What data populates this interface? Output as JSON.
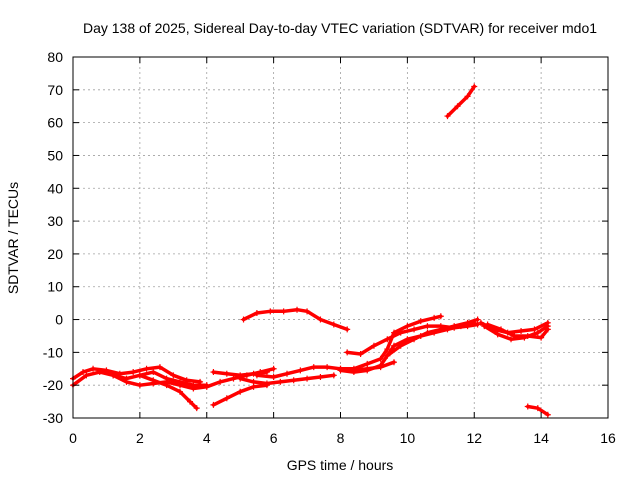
{
  "chart_data": {
    "type": "line",
    "title": "Day 138 of 2025, Sidereal Day-to-day VTEC variation (SDTVAR) for receiver mdo1",
    "xlabel": "GPS time / hours",
    "ylabel": "SDTVAR / TECUs",
    "xlim": [
      0,
      16
    ],
    "ylim": [
      -30,
      80
    ],
    "xticks": [
      0,
      2,
      4,
      6,
      8,
      10,
      12,
      14,
      16
    ],
    "yticks": [
      -30,
      -20,
      -10,
      0,
      10,
      20,
      30,
      40,
      50,
      60,
      70,
      80
    ],
    "grid": true,
    "legend": "none",
    "series_color": "#ff0000",
    "series": [
      {
        "x": [
          0.0,
          0.3,
          0.6,
          1.0,
          1.4,
          1.8,
          2.2,
          2.6,
          3.0,
          3.4,
          3.8
        ],
        "y": [
          -18,
          -16,
          -15,
          -15.5,
          -16.5,
          -16,
          -15,
          -14.5,
          -17,
          -18.5,
          -19
        ]
      },
      {
        "x": [
          0.0,
          0.4,
          0.8,
          1.2,
          1.6,
          2.0,
          2.4,
          2.8,
          3.2,
          3.6,
          4.0
        ],
        "y": [
          -20,
          -17,
          -16,
          -17,
          -18,
          -17,
          -16,
          -18,
          -19,
          -20,
          -20
        ]
      },
      {
        "x": [
          1.2,
          1.6,
          2.0,
          2.4,
          2.8,
          3.2,
          3.6,
          4.0,
          4.4,
          4.8,
          5.2,
          5.6,
          6.0
        ],
        "y": [
          -17,
          -19,
          -20,
          -19.5,
          -19,
          -20,
          -21,
          -20.5,
          -19,
          -18,
          -17,
          -16,
          -15
        ]
      },
      {
        "x": [
          2.0,
          2.4,
          2.8,
          3.2,
          3.5,
          3.7
        ],
        "y": [
          -17,
          -18.5,
          -20,
          -22,
          -25,
          -27
        ]
      },
      {
        "x": [
          4.2,
          4.6,
          5.0,
          5.4,
          5.8
        ],
        "y": [
          -16,
          -16.5,
          -17,
          -16.5,
          -16
        ]
      },
      {
        "x": [
          4.2,
          4.6,
          5.0,
          5.4,
          5.8
        ],
        "y": [
          -26,
          -24,
          -22,
          -20.5,
          -20
        ]
      },
      {
        "x": [
          5.0,
          5.4,
          5.8,
          6.2,
          6.6,
          7.0,
          7.4,
          7.8
        ],
        "y": [
          -18,
          -19,
          -19.5,
          -19,
          -18.5,
          -18,
          -17.5,
          -17
        ]
      },
      {
        "x": [
          5.5,
          6.0,
          6.4,
          6.8,
          7.2,
          7.6,
          8.0,
          8.4,
          8.8,
          9.2,
          9.6
        ],
        "y": [
          -17,
          -17.5,
          -16.5,
          -15.5,
          -14.5,
          -14.5,
          -15,
          -15.5,
          -15,
          -14.5,
          -13
        ]
      },
      {
        "x": [
          5.1,
          5.5,
          5.9,
          6.3,
          6.7,
          7.0,
          7.4,
          7.8,
          8.2
        ],
        "y": [
          0,
          2,
          2.5,
          2.5,
          3,
          2.5,
          0,
          -1.5,
          -3
        ]
      },
      {
        "x": [
          8.2,
          8.6,
          9.0,
          9.4,
          9.8,
          10.2,
          10.6,
          11.0,
          11.4,
          11.8,
          12.1
        ],
        "y": [
          -10,
          -10.5,
          -8,
          -6,
          -4,
          -3,
          -2,
          -2,
          -2.5,
          -2,
          -1.5
        ]
      },
      {
        "x": [
          8.0,
          8.4,
          8.8,
          9.2,
          9.4,
          9.6,
          10.0,
          10.4,
          10.8,
          11.0
        ],
        "y": [
          -15,
          -15,
          -13.5,
          -12,
          -9,
          -4,
          -2,
          -0.5,
          0.5,
          1
        ]
      },
      {
        "x": [
          8.0,
          8.4,
          8.8,
          9.2,
          9.4,
          9.6,
          10.0,
          10.4,
          10.8,
          11.2,
          11.6,
          12.0
        ],
        "y": [
          -15.5,
          -16,
          -15.5,
          -14,
          -11,
          -8,
          -6,
          -5,
          -4,
          -3,
          -2,
          -1
        ]
      },
      {
        "x": [
          9.4,
          9.8,
          10.2,
          10.6,
          11.0,
          11.4,
          11.8,
          12.1
        ],
        "y": [
          -11,
          -8,
          -6,
          -4,
          -3,
          -2,
          -1,
          0
        ]
      },
      {
        "x": [
          12.2,
          12.6,
          13.0,
          13.4,
          13.8,
          14.2
        ],
        "y": [
          -1,
          -3,
          -4,
          -3.5,
          -3,
          -1
        ]
      },
      {
        "x": [
          12.3,
          12.7,
          13.1,
          13.5,
          13.9,
          14.2
        ],
        "y": [
          -2,
          -4.5,
          -6,
          -5.5,
          -4,
          -2
        ]
      },
      {
        "x": [
          12.4,
          12.8,
          13.2,
          13.6,
          14.0,
          14.2
        ],
        "y": [
          -1.5,
          -3,
          -5,
          -5,
          -5.5,
          -3
        ]
      },
      {
        "x": [
          11.2,
          11.5,
          11.8,
          12.0
        ],
        "y": [
          62,
          65,
          68,
          71
        ]
      },
      {
        "x": [
          13.6,
          13.9,
          14.2
        ],
        "y": [
          -26.5,
          -27,
          -29
        ]
      }
    ]
  }
}
